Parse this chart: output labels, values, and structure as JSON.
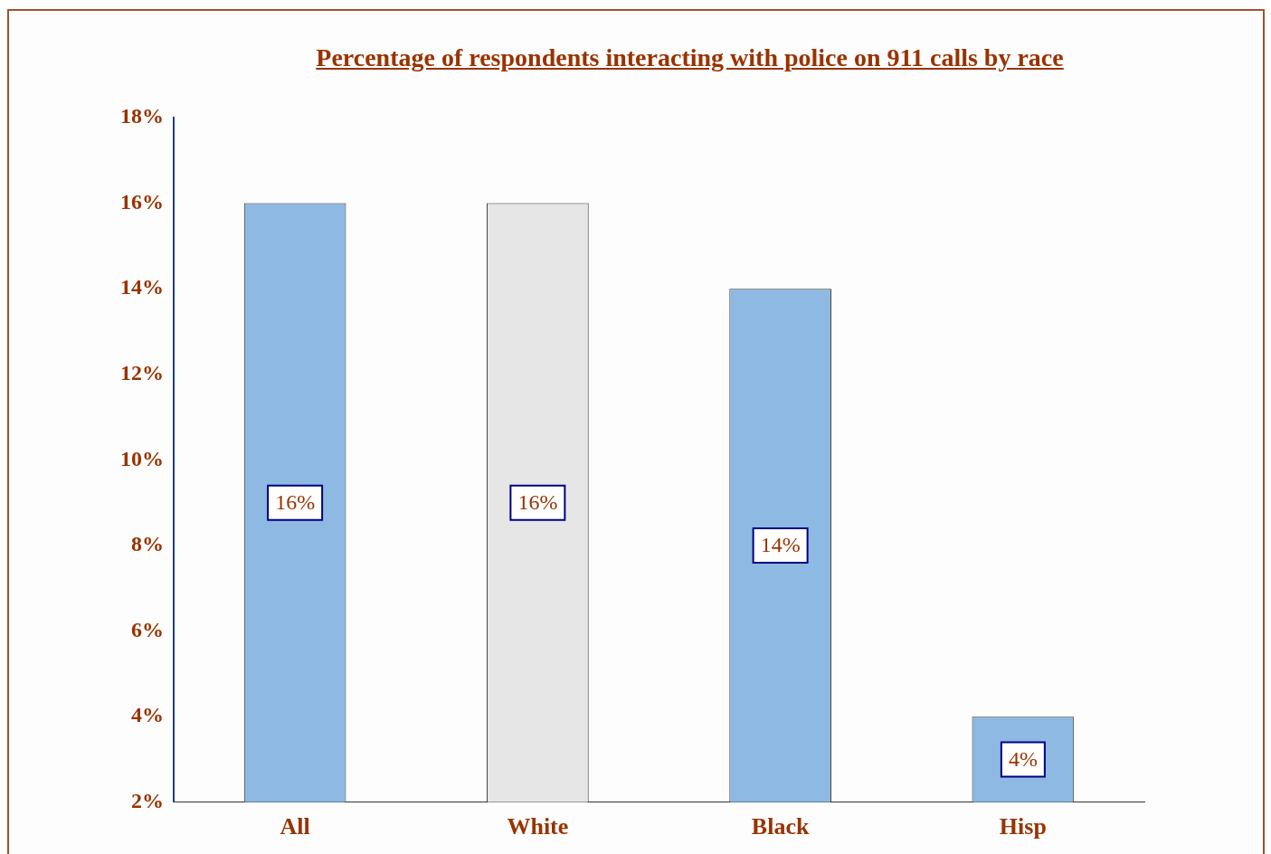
{
  "chart_data": {
    "type": "bar",
    "title": "Percentage of  respondents interacting with police on 911 calls by race",
    "categories": [
      "All",
      "White",
      "Black",
      "Hisp"
    ],
    "values": [
      16,
      16,
      14,
      4
    ],
    "colors": [
      "#8db9e2",
      "#e6e6e6",
      "#8db9e2",
      "#8db9e2"
    ],
    "value_labels": [
      "16%",
      "16%",
      "14%",
      "4%"
    ],
    "ylim": [
      2,
      18
    ],
    "yticks": [
      {
        "value": 2,
        "label": "2%"
      },
      {
        "value": 4,
        "label": "4%"
      },
      {
        "value": 6,
        "label": "6%"
      },
      {
        "value": 8,
        "label": "8%"
      },
      {
        "value": 10,
        "label": "10%"
      },
      {
        "value": 12,
        "label": "12%"
      },
      {
        "value": 14,
        "label": "14%"
      },
      {
        "value": 16,
        "label": "16%"
      },
      {
        "value": 18,
        "label": "18%"
      }
    ],
    "grid": false,
    "legend": false
  }
}
